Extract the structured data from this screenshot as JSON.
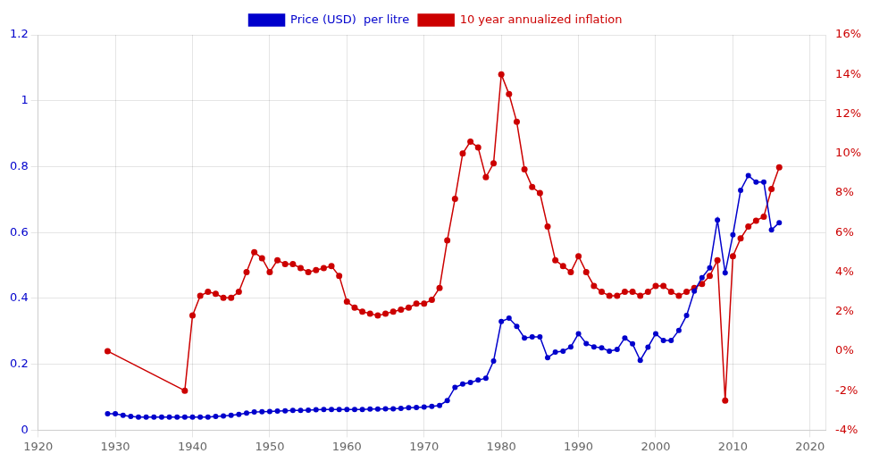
{
  "chart_data": {
    "type": "line",
    "grid": true,
    "legend": "top",
    "marker": "circle",
    "xlim": [
      1920,
      2022
    ],
    "xticks": [
      1920,
      1930,
      1940,
      1950,
      1960,
      1970,
      1980,
      1990,
      2000,
      2010,
      2020
    ],
    "ylim": [
      0,
      1.2
    ],
    "yticks": [
      0,
      0.2,
      0.4,
      0.6,
      0.8,
      1,
      1.2
    ],
    "y2lim": [
      -0.04,
      0.16
    ],
    "y2ticks": [
      {
        "value": -0.04,
        "label": "-4%"
      },
      {
        "value": -0.02,
        "label": "-2%"
      },
      {
        "value": 0,
        "label": "0%"
      },
      {
        "value": 0.02,
        "label": "2%"
      },
      {
        "value": 0.04,
        "label": "4%"
      },
      {
        "value": 0.06,
        "label": "6%"
      },
      {
        "value": 0.08,
        "label": "8%"
      },
      {
        "value": 0.1,
        "label": "10%"
      },
      {
        "value": 0.12,
        "label": "12%"
      },
      {
        "value": 0.14,
        "label": "14%"
      },
      {
        "value": 0.16,
        "label": "16%"
      }
    ],
    "series": [
      {
        "name": "Price (USD)  per litre",
        "color": "#0000CC",
        "axis": "y",
        "x": [
          1929,
          1930,
          1931,
          1932,
          1933,
          1934,
          1935,
          1936,
          1937,
          1938,
          1939,
          1940,
          1941,
          1942,
          1943,
          1944,
          1945,
          1946,
          1947,
          1948,
          1949,
          1950,
          1951,
          1952,
          1953,
          1954,
          1955,
          1956,
          1957,
          1958,
          1959,
          1960,
          1961,
          1962,
          1963,
          1964,
          1965,
          1966,
          1967,
          1968,
          1969,
          1970,
          1971,
          1972,
          1973,
          1974,
          1975,
          1976,
          1977,
          1978,
          1979,
          1980,
          1981,
          1982,
          1983,
          1984,
          1985,
          1986,
          1987,
          1988,
          1989,
          1990,
          1991,
          1992,
          1993,
          1994,
          1995,
          1996,
          1997,
          1998,
          1999,
          2000,
          2001,
          2002,
          2003,
          2004,
          2005,
          2006,
          2007,
          2008,
          2009,
          2010,
          2011,
          2012,
          2013,
          2014,
          2015,
          2016
        ],
        "values": [
          0.05,
          0.05,
          0.045,
          0.042,
          0.04,
          0.04,
          0.04,
          0.04,
          0.04,
          0.04,
          0.04,
          0.04,
          0.04,
          0.04,
          0.042,
          0.043,
          0.045,
          0.048,
          0.052,
          0.055,
          0.056,
          0.057,
          0.058,
          0.059,
          0.06,
          0.06,
          0.061,
          0.062,
          0.063,
          0.063,
          0.063,
          0.063,
          0.063,
          0.063,
          0.064,
          0.064,
          0.065,
          0.065,
          0.066,
          0.068,
          0.069,
          0.07,
          0.072,
          0.075,
          0.09,
          0.13,
          0.14,
          0.145,
          0.152,
          0.158,
          0.21,
          0.33,
          0.34,
          0.315,
          0.28,
          0.283,
          0.283,
          0.22,
          0.237,
          0.24,
          0.253,
          0.293,
          0.263,
          0.253,
          0.25,
          0.24,
          0.245,
          0.28,
          0.262,
          0.212,
          0.252,
          0.293,
          0.272,
          0.272,
          0.303,
          0.348,
          0.422,
          0.463,
          0.493,
          0.638,
          0.478,
          0.593,
          0.728,
          0.773,
          0.753,
          0.753,
          0.608,
          0.63
        ]
      },
      {
        "name": "10 year annualized inflation",
        "color": "#CC0000",
        "axis": "y2",
        "x": [
          1929,
          1939,
          1940,
          1941,
          1942,
          1943,
          1944,
          1945,
          1946,
          1947,
          1948,
          1949,
          1950,
          1951,
          1952,
          1953,
          1954,
          1955,
          1956,
          1957,
          1958,
          1959,
          1960,
          1961,
          1962,
          1963,
          1964,
          1965,
          1966,
          1967,
          1968,
          1969,
          1970,
          1971,
          1972,
          1973,
          1974,
          1975,
          1976,
          1977,
          1978,
          1979,
          1980,
          1981,
          1982,
          1983,
          1984,
          1985,
          1986,
          1987,
          1988,
          1989,
          1990,
          1991,
          1992,
          1993,
          1994,
          1995,
          1996,
          1997,
          1998,
          1999,
          2000,
          2001,
          2002,
          2003,
          2004,
          2005,
          2006,
          2007,
          2008,
          2009,
          2010,
          2011,
          2012,
          2013,
          2014,
          2015,
          2016
        ],
        "values": [
          0.0,
          -0.02,
          0.018,
          0.028,
          0.03,
          0.029,
          0.027,
          0.027,
          0.03,
          0.04,
          0.05,
          0.047,
          0.04,
          0.046,
          0.044,
          0.044,
          0.042,
          0.04,
          0.041,
          0.042,
          0.043,
          0.038,
          0.025,
          0.022,
          0.02,
          0.019,
          0.018,
          0.019,
          0.02,
          0.021,
          0.022,
          0.024,
          0.024,
          0.026,
          0.032,
          0.056,
          0.077,
          0.1,
          0.106,
          0.103,
          0.088,
          0.095,
          0.14,
          0.13,
          0.116,
          0.092,
          0.083,
          0.08,
          0.063,
          0.046,
          0.043,
          0.04,
          0.048,
          0.04,
          0.033,
          0.03,
          0.028,
          0.028,
          0.03,
          0.03,
          0.028,
          0.03,
          0.033,
          0.033,
          0.03,
          0.028,
          0.03,
          0.032,
          0.034,
          0.038,
          0.046,
          -0.025,
          0.048,
          0.057,
          0.063,
          0.066,
          0.068,
          0.082,
          0.093
        ]
      }
    ]
  }
}
